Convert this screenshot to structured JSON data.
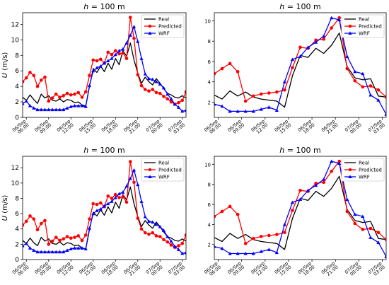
{
  "figure": {
    "background": "#ffffff"
  },
  "styles": {
    "Real": {
      "color": "#000000",
      "marker": "none"
    },
    "Predicted": {
      "color": "#ff0000",
      "marker": "circle"
    },
    "WRF": {
      "color": "#0000ff",
      "marker": "triangle"
    }
  },
  "chart_data": [
    {
      "type": "line",
      "title": "h = 100 m",
      "title_var": "h",
      "title_rest": " = 100 m",
      "xlabel": "",
      "ylabel": "U (m/s)",
      "xlim": [
        5.5,
        27.5
      ],
      "ylim": [
        0,
        13.5
      ],
      "yticks": [
        0,
        2,
        4,
        6,
        8,
        10,
        12
      ],
      "xticks": [
        {
          "x": 6,
          "label": "06/Sep\n06:00"
        },
        {
          "x": 9,
          "label": "06/Sep\n09:00"
        },
        {
          "x": 12,
          "label": "06/Sep\n12:00"
        },
        {
          "x": 15,
          "label": "06/Sep\n15:00"
        },
        {
          "x": 18,
          "label": "06/Sep\n18:00"
        },
        {
          "x": 21,
          "label": "06/Sep\n21:00"
        },
        {
          "x": 24,
          "label": "07/Sep\n00:00"
        },
        {
          "x": 27,
          "label": "07/Sep\n03:00"
        }
      ],
      "legend": "top-right",
      "series": [
        {
          "name": "Real",
          "x": [
            5.5,
            6,
            6.5,
            7,
            7.5,
            8,
            8.5,
            9,
            9.5,
            10,
            10.5,
            11,
            11.5,
            12,
            12.5,
            13,
            13.5,
            14,
            14.5,
            15,
            15.5,
            16,
            16.5,
            17,
            17.5,
            18,
            18.5,
            19,
            19.5,
            20,
            20.5,
            21,
            21.5,
            22,
            22.5,
            23,
            23.5,
            24,
            24.5,
            25,
            25.5,
            26,
            26.5,
            27,
            27.5
          ],
          "y": [
            2.6,
            2.2,
            2.9,
            2.3,
            1.8,
            3.0,
            2.5,
            2.8,
            2.2,
            2.1,
            2.4,
            2.0,
            2.3,
            2.2,
            1.9,
            2.0,
            1.6,
            1.5,
            4.0,
            6.3,
            5.8,
            6.6,
            5.9,
            7.0,
            6.2,
            7.6,
            6.8,
            8.6,
            7.9,
            9.6,
            7.4,
            5.7,
            4.4,
            5.2,
            4.6,
            4.2,
            5.0,
            4.4,
            3.7,
            3.1,
            2.9,
            2.6,
            2.5,
            2.8,
            2.5
          ]
        },
        {
          "name": "Predicted",
          "x": [
            5.5,
            6,
            6.5,
            7,
            7.5,
            8,
            8.5,
            9,
            9.5,
            10,
            10.5,
            11,
            11.5,
            12,
            12.5,
            13,
            13.5,
            14,
            14.5,
            15,
            15.5,
            16,
            16.5,
            17,
            17.5,
            18,
            18.5,
            19,
            19.5,
            20,
            20.5,
            21,
            21.5,
            22,
            22.5,
            23,
            23.5,
            24,
            24.5,
            25,
            25.5,
            26,
            26.5,
            27,
            27.5
          ],
          "y": [
            4.6,
            5.1,
            5.8,
            5.4,
            4.0,
            4.8,
            5.2,
            2.1,
            2.5,
            3.0,
            2.6,
            2.8,
            3.1,
            2.9,
            3.0,
            3.2,
            2.6,
            3.3,
            5.4,
            7.4,
            7.3,
            7.5,
            7.0,
            8.4,
            8.1,
            8.6,
            8.2,
            8.3,
            7.6,
            12.9,
            10.2,
            5.5,
            4.1,
            3.6,
            3.4,
            3.6,
            3.2,
            3.1,
            2.7,
            2.4,
            2.0,
            1.7,
            1.9,
            2.2,
            3.3
          ]
        },
        {
          "name": "WRF",
          "x": [
            5.5,
            6,
            6.5,
            7,
            7.5,
            8,
            8.5,
            9,
            9.5,
            10,
            10.5,
            11,
            11.5,
            12,
            12.5,
            13,
            13.5,
            14,
            14.5,
            15,
            15.5,
            16,
            16.5,
            17,
            17.5,
            18,
            18.5,
            19,
            19.5,
            20,
            20.5,
            21,
            21.5,
            22,
            22.5,
            23,
            23.5,
            24,
            24.5,
            25,
            25.5,
            26,
            26.5,
            27,
            27.5
          ],
          "y": [
            1.8,
            2.1,
            1.5,
            1.2,
            1.0,
            1.0,
            1.0,
            1.0,
            1.0,
            1.0,
            1.0,
            1.0,
            1.2,
            1.4,
            1.5,
            1.5,
            1.5,
            1.4,
            4.1,
            6.0,
            6.4,
            6.6,
            7.0,
            7.3,
            7.6,
            8.1,
            8.6,
            8.8,
            9.6,
            10.6,
            11.7,
            9.8,
            7.6,
            5.6,
            5.0,
            4.9,
            4.6,
            4.3,
            3.8,
            3.0,
            2.4,
            1.7,
            1.3,
            0.8,
            0.9
          ]
        }
      ]
    },
    {
      "type": "line",
      "title": "h = 100 m",
      "title_var": "h",
      "title_rest": " = 100 m",
      "xlabel": "",
      "ylabel": "",
      "xlim": [
        5.5,
        27.5
      ],
      "ylim": [
        0.5,
        10.8
      ],
      "yticks": [
        2,
        4,
        6,
        8,
        10
      ],
      "xticks": [
        {
          "x": 6,
          "label": "06/Sep\n06:00"
        },
        {
          "x": 9,
          "label": "06/Sep\n09:00"
        },
        {
          "x": 12,
          "label": "06/Sep\n12:00"
        },
        {
          "x": 15,
          "label": "06/Sep\n15:00"
        },
        {
          "x": 18,
          "label": "06/Sep\n18:00"
        },
        {
          "x": 21,
          "label": "06/Sep\n21:00"
        },
        {
          "x": 24,
          "label": "07/Sep\n00:00"
        },
        {
          "x": 27,
          "label": "07/Sep\n03:00"
        }
      ],
      "legend": "top-right",
      "series": [
        {
          "name": "Real",
          "x": [
            5.5,
            6.5,
            7.5,
            8.5,
            9.5,
            10.5,
            11.5,
            12.5,
            13.5,
            14.5,
            15.5,
            16.5,
            17.5,
            18.5,
            19.5,
            20.5,
            21.5,
            22.5,
            23.5,
            24.5,
            25.5,
            26.5,
            27.5
          ],
          "y": [
            2.7,
            2.3,
            3.1,
            2.6,
            3.0,
            2.5,
            2.3,
            2.2,
            2.1,
            1.5,
            4.6,
            6.6,
            6.4,
            7.3,
            6.8,
            7.6,
            8.8,
            5.5,
            4.4,
            4.2,
            4.3,
            2.6,
            2.5
          ]
        },
        {
          "name": "Predicted",
          "x": [
            5.5,
            6.5,
            7.5,
            8.5,
            9.5,
            10.5,
            11.5,
            12.5,
            13.5,
            14.5,
            15.5,
            16.5,
            17.5,
            18.5,
            19.5,
            20.5,
            21.5,
            22.5,
            23.5,
            24.5,
            25.5,
            26.5,
            27.5
          ],
          "y": [
            4.8,
            5.3,
            5.8,
            5.0,
            2.1,
            2.6,
            2.8,
            2.9,
            3.0,
            3.2,
            5.4,
            7.4,
            7.3,
            8.1,
            8.2,
            9.3,
            10.3,
            5.3,
            4.1,
            3.5,
            3.6,
            3.2,
            2.5
          ]
        },
        {
          "name": "WRF",
          "x": [
            5.5,
            6.5,
            7.5,
            8.5,
            9.5,
            10.5,
            11.5,
            12.5,
            13.5,
            14.5,
            15.5,
            16.5,
            17.5,
            18.5,
            19.5,
            20.5,
            21.5,
            22.5,
            23.5,
            24.5,
            25.5,
            26.5,
            27.5
          ],
          "y": [
            1.8,
            1.6,
            1.1,
            1.1,
            1.1,
            1.1,
            1.3,
            1.5,
            1.2,
            4.0,
            6.2,
            6.5,
            7.4,
            7.9,
            8.5,
            10.3,
            10.1,
            6.5,
            5.0,
            4.8,
            2.7,
            2.2,
            0.8
          ]
        }
      ]
    },
    {
      "type": "line",
      "title": "h = 100 m",
      "title_var": "h",
      "title_rest": " = 100 m",
      "xlabel": "",
      "ylabel": "U (m/s)",
      "xlim": [
        5.5,
        27.5
      ],
      "ylim": [
        0,
        13.5
      ],
      "yticks": [
        0,
        2,
        4,
        6,
        8,
        10,
        12
      ],
      "xticks": [
        {
          "x": 6,
          "label": "06/Sep\n06:00"
        },
        {
          "x": 9,
          "label": "06/Sep\n09:00"
        },
        {
          "x": 12,
          "label": "06/Sep\n12:00"
        },
        {
          "x": 15,
          "label": "06/Sep\n15:00"
        },
        {
          "x": 18,
          "label": "06/Sep\n18:00"
        },
        {
          "x": 21,
          "label": "06/Sep\n21:00"
        },
        {
          "x": 24,
          "label": "07/Sep\n00:00"
        },
        {
          "x": 27,
          "label": "07/Sep\n03:00"
        }
      ],
      "legend": "top-right",
      "series": [
        {
          "name": "Real",
          "x": [
            5.5,
            6,
            6.5,
            7,
            7.5,
            8,
            8.5,
            9,
            9.5,
            10,
            10.5,
            11,
            11.5,
            12,
            12.5,
            13,
            13.5,
            14,
            14.5,
            15,
            15.5,
            16,
            16.5,
            17,
            17.5,
            18,
            18.5,
            19,
            19.5,
            20,
            20.5,
            21,
            21.5,
            22,
            22.5,
            23,
            23.5,
            24,
            24.5,
            25,
            25.5,
            26,
            26.5,
            27,
            27.5
          ],
          "y": [
            2.5,
            2.1,
            2.8,
            2.2,
            1.8,
            2.9,
            2.4,
            2.7,
            2.1,
            2.0,
            2.3,
            1.9,
            2.2,
            2.1,
            1.8,
            1.9,
            1.5,
            1.4,
            3.9,
            6.2,
            5.7,
            6.5,
            5.8,
            6.9,
            6.1,
            7.5,
            6.7,
            8.5,
            7.8,
            9.5,
            7.3,
            5.6,
            4.3,
            5.1,
            4.5,
            4.1,
            4.9,
            4.3,
            3.6,
            3.0,
            2.8,
            2.5,
            2.4,
            2.7,
            2.4
          ]
        },
        {
          "name": "Predicted",
          "x": [
            5.5,
            6,
            6.5,
            7,
            7.5,
            8,
            8.5,
            9,
            9.5,
            10,
            10.5,
            11,
            11.5,
            12,
            12.5,
            13,
            13.5,
            14,
            14.5,
            15,
            15.5,
            16,
            16.5,
            17,
            17.5,
            18,
            18.5,
            19,
            19.5,
            20,
            20.5,
            21,
            21.5,
            22,
            22.5,
            23,
            23.5,
            24,
            24.5,
            25,
            25.5,
            26,
            26.5,
            27,
            27.5
          ],
          "y": [
            4.5,
            5.0,
            5.7,
            5.3,
            3.9,
            4.7,
            5.1,
            2.0,
            2.4,
            2.9,
            2.5,
            2.7,
            3.0,
            2.8,
            2.9,
            3.1,
            2.5,
            3.2,
            5.3,
            7.3,
            7.2,
            7.4,
            6.9,
            8.3,
            8.0,
            8.5,
            8.1,
            8.2,
            7.5,
            12.8,
            10.1,
            5.4,
            4.0,
            3.5,
            3.3,
            3.5,
            3.1,
            3.0,
            2.6,
            2.3,
            1.9,
            1.6,
            1.8,
            2.1,
            3.2
          ]
        },
        {
          "name": "WRF",
          "x": [
            5.5,
            6,
            6.5,
            7,
            7.5,
            8,
            8.5,
            9,
            9.5,
            10,
            10.5,
            11,
            11.5,
            12,
            12.5,
            13,
            13.5,
            14,
            14.5,
            15,
            15.5,
            16,
            16.5,
            17,
            17.5,
            18,
            18.5,
            19,
            19.5,
            20,
            20.5,
            21,
            21.5,
            22,
            22.5,
            23,
            23.5,
            24,
            24.5,
            25,
            25.5,
            26,
            26.5,
            27,
            27.5
          ],
          "y": [
            1.8,
            2.1,
            1.5,
            1.2,
            1.0,
            1.0,
            1.0,
            1.0,
            1.0,
            1.0,
            1.0,
            1.0,
            1.2,
            1.4,
            1.5,
            1.5,
            1.5,
            1.4,
            4.1,
            6.0,
            6.4,
            6.6,
            7.0,
            7.3,
            7.6,
            8.1,
            8.6,
            8.8,
            9.6,
            10.6,
            11.7,
            9.8,
            7.6,
            5.6,
            5.0,
            4.9,
            4.6,
            4.3,
            3.8,
            3.0,
            2.4,
            1.7,
            1.3,
            0.8,
            0.9
          ]
        }
      ]
    },
    {
      "type": "line",
      "title": "h = 100 m",
      "title_var": "h",
      "title_rest": " = 100 m",
      "xlabel": "",
      "ylabel": "",
      "xlim": [
        5.5,
        27.5
      ],
      "ylim": [
        0.5,
        10.8
      ],
      "yticks": [
        2,
        4,
        6,
        8,
        10
      ],
      "xticks": [
        {
          "x": 6,
          "label": "06/Sep\n06:00"
        },
        {
          "x": 9,
          "label": "06/Sep\n09:00"
        },
        {
          "x": 12,
          "label": "06/Sep\n12:00"
        },
        {
          "x": 15,
          "label": "06/Sep\n15:00"
        },
        {
          "x": 18,
          "label": "06/Sep\n18:00"
        },
        {
          "x": 21,
          "label": "06/Sep\n21:00"
        },
        {
          "x": 24,
          "label": "07/Sep\n00:00"
        },
        {
          "x": 27,
          "label": "07/Sep\n03:00"
        }
      ],
      "legend": "top-right",
      "series": [
        {
          "name": "Real",
          "x": [
            5.5,
            6.5,
            7.5,
            8.5,
            9.5,
            10.5,
            11.5,
            12.5,
            13.5,
            14.5,
            15.5,
            16.5,
            17.5,
            18.5,
            19.5,
            20.5,
            21.5,
            22.5,
            23.5,
            24.5,
            25.5,
            26.5,
            27.5
          ],
          "y": [
            2.7,
            2.3,
            3.1,
            2.6,
            3.0,
            2.5,
            2.3,
            2.2,
            2.1,
            1.5,
            4.6,
            6.6,
            6.4,
            7.3,
            6.8,
            7.6,
            8.8,
            5.5,
            4.4,
            4.2,
            4.3,
            2.6,
            2.5
          ]
        },
        {
          "name": "Predicted",
          "x": [
            5.5,
            6.5,
            7.5,
            8.5,
            9.5,
            10.5,
            11.5,
            12.5,
            13.5,
            14.5,
            15.5,
            16.5,
            17.5,
            18.5,
            19.5,
            20.5,
            21.5,
            22.5,
            23.5,
            24.5,
            25.5,
            26.5,
            27.5
          ],
          "y": [
            4.8,
            5.3,
            5.8,
            5.0,
            2.1,
            2.6,
            2.8,
            2.9,
            3.0,
            3.2,
            5.4,
            7.4,
            7.3,
            8.1,
            8.2,
            9.3,
            10.3,
            5.3,
            4.1,
            3.5,
            3.6,
            3.2,
            2.5
          ]
        },
        {
          "name": "WRF",
          "x": [
            5.5,
            6.5,
            7.5,
            8.5,
            9.5,
            10.5,
            11.5,
            12.5,
            13.5,
            14.5,
            15.5,
            16.5,
            17.5,
            18.5,
            19.5,
            20.5,
            21.5,
            22.5,
            23.5,
            24.5,
            25.5,
            26.5,
            27.5
          ],
          "y": [
            1.8,
            1.6,
            1.1,
            1.1,
            1.1,
            1.1,
            1.3,
            1.5,
            1.2,
            4.0,
            6.2,
            6.5,
            7.4,
            7.9,
            8.5,
            10.3,
            10.1,
            6.5,
            5.0,
            4.8,
            2.7,
            2.2,
            0.8
          ]
        }
      ]
    }
  ]
}
